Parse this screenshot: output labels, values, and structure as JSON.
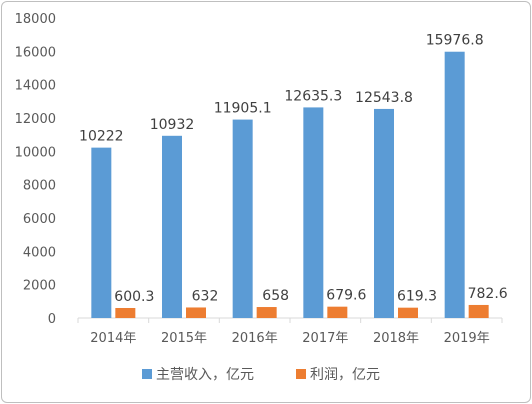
{
  "chart_data": {
    "type": "bar",
    "title": "",
    "xlabel": "",
    "ylabel": "",
    "categories": [
      "2014年",
      "2015年",
      "2016年",
      "2017年",
      "2018年",
      "2019年"
    ],
    "series": [
      {
        "name": "主营收入，亿元",
        "color": "#5b9bd5",
        "values": [
          10222,
          10932,
          11905.1,
          12635.3,
          12543.8,
          15976.8
        ],
        "labels": [
          "10222",
          "10932",
          "11905.1",
          "12635.3",
          "12543.8",
          "15976.8"
        ]
      },
      {
        "name": "利润，亿元",
        "color": "#ed7d31",
        "values": [
          600.3,
          632,
          658,
          679.6,
          619.3,
          782.6
        ],
        "labels": [
          "600.3",
          "632",
          "658",
          "679.6",
          "619.3",
          "782.6"
        ]
      }
    ],
    "ylim": [
      0,
      18000
    ],
    "yticks": [
      0,
      2000,
      4000,
      6000,
      8000,
      10000,
      12000,
      14000,
      16000,
      18000
    ],
    "grid": false,
    "legend_position": "bottom"
  }
}
